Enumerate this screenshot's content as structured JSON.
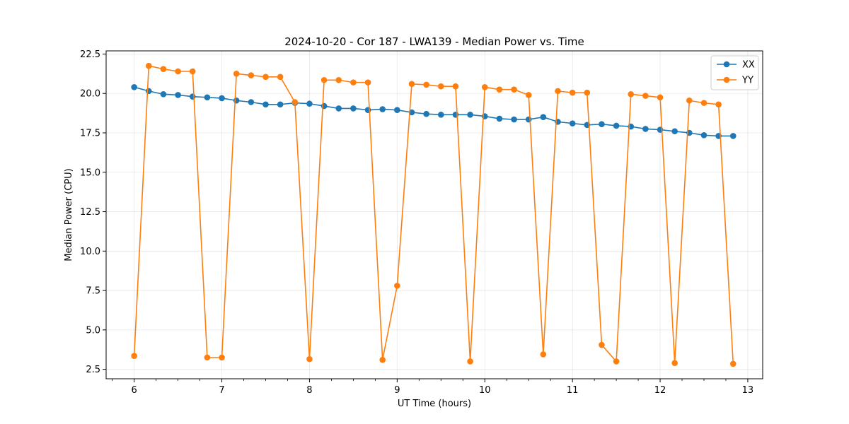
{
  "chart_data": {
    "type": "line",
    "title": "2024-10-20 - Cor 187 - LWA139 - Median Power vs. Time",
    "xlabel": "UT Time (hours)",
    "ylabel": "Median Power (CPU)",
    "xlim": [
      5.68,
      13.17
    ],
    "ylim": [
      1.9,
      22.7
    ],
    "xticks": [
      6,
      7,
      8,
      9,
      10,
      11,
      12,
      13
    ],
    "xtick_labels": [
      "6",
      "7",
      "8",
      "9",
      "10",
      "11",
      "12",
      "13"
    ],
    "xminor_step": 0.25,
    "yticks": [
      2.5,
      5.0,
      7.5,
      10.0,
      12.5,
      15.0,
      17.5,
      20.0,
      22.5
    ],
    "ytick_labels": [
      "2.5",
      "5.0",
      "7.5",
      "10.0",
      "12.5",
      "15.0",
      "17.5",
      "20.0",
      "22.5"
    ],
    "grid": true,
    "legend_position": "top-right",
    "series": [
      {
        "name": "XX",
        "color": "#1f77b4",
        "x": [
          6.0,
          6.1667,
          6.3333,
          6.5,
          6.6667,
          6.8333,
          7.0,
          7.1667,
          7.3333,
          7.5,
          7.6667,
          7.8333,
          8.0,
          8.1667,
          8.3333,
          8.5,
          8.6667,
          8.8333,
          9.0,
          9.1667,
          9.3333,
          9.5,
          9.6667,
          9.8333,
          10.0,
          10.1667,
          10.3333,
          10.5,
          10.6667,
          10.8333,
          11.0,
          11.1667,
          11.3333,
          11.5,
          11.6667,
          11.8333,
          12.0,
          12.1667,
          12.3333,
          12.5,
          12.6667,
          12.8333
        ],
        "values": [
          20.4,
          20.15,
          19.95,
          19.9,
          19.8,
          19.75,
          19.7,
          19.55,
          19.45,
          19.3,
          19.3,
          19.4,
          19.35,
          19.2,
          19.05,
          19.05,
          18.95,
          19.0,
          18.95,
          18.8,
          18.7,
          18.65,
          18.65,
          18.65,
          18.55,
          18.4,
          18.35,
          18.35,
          18.5,
          18.2,
          18.1,
          18.0,
          18.05,
          17.95,
          17.9,
          17.75,
          17.7,
          17.6,
          17.5,
          17.35,
          17.3,
          17.3
        ]
      },
      {
        "name": "YY",
        "color": "#ff7f0e",
        "x": [
          6.0,
          6.1667,
          6.3333,
          6.5,
          6.6667,
          6.8333,
          7.0,
          7.1667,
          7.3333,
          7.5,
          7.6667,
          7.8333,
          8.0,
          8.1667,
          8.3333,
          8.5,
          8.6667,
          8.8333,
          9.0,
          9.1667,
          9.3333,
          9.5,
          9.6667,
          9.8333,
          10.0,
          10.1667,
          10.3333,
          10.5,
          10.6667,
          10.8333,
          11.0,
          11.1667,
          11.3333,
          11.5,
          11.6667,
          11.8333,
          12.0,
          12.1667,
          12.3333,
          12.5,
          12.6667,
          12.8333
        ],
        "values": [
          3.35,
          21.75,
          21.55,
          21.4,
          21.4,
          3.25,
          3.25,
          21.25,
          21.15,
          21.05,
          21.05,
          19.45,
          3.15,
          20.85,
          20.85,
          20.7,
          20.7,
          3.1,
          7.8,
          20.6,
          20.55,
          20.45,
          20.45,
          3.0,
          20.4,
          20.25,
          20.25,
          19.9,
          3.45,
          20.15,
          20.05,
          20.05,
          4.05,
          3.0,
          19.95,
          19.85,
          19.75,
          2.9,
          19.55,
          19.4,
          19.3,
          2.85
        ]
      }
    ]
  }
}
